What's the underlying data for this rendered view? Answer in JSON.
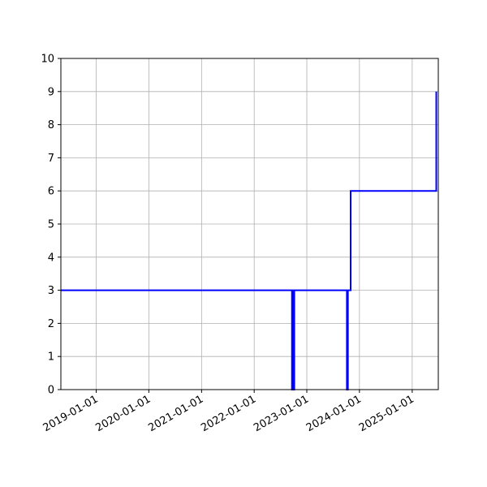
{
  "chart_data": {
    "type": "line",
    "step": true,
    "grid": true,
    "xaxis": "date",
    "xlim": [
      "2018-05-01",
      "2025-07-01"
    ],
    "ylim": [
      0,
      10
    ],
    "x_ticks": [
      "2019-01-01",
      "2020-01-01",
      "2021-01-01",
      "2022-01-01",
      "2023-01-01",
      "2024-01-01",
      "2025-01-01"
    ],
    "y_ticks": [
      0,
      1,
      2,
      3,
      4,
      5,
      6,
      7,
      8,
      9,
      10
    ],
    "series": [
      {
        "color": "#0000ff",
        "points": [
          {
            "x": "2018-05-01",
            "y": 3
          },
          {
            "x": "2022-09-20",
            "y": 3
          },
          {
            "x": "2022-09-20",
            "y": 0
          },
          {
            "x": "2022-09-27",
            "y": 0
          },
          {
            "x": "2022-09-27",
            "y": 3
          },
          {
            "x": "2022-09-29",
            "y": 3
          },
          {
            "x": "2022-09-29",
            "y": 0
          },
          {
            "x": "2022-10-06",
            "y": 0
          },
          {
            "x": "2022-10-06",
            "y": 3
          },
          {
            "x": "2023-10-06",
            "y": 3
          },
          {
            "x": "2023-10-06",
            "y": 0
          },
          {
            "x": "2023-10-13",
            "y": 0
          },
          {
            "x": "2023-10-13",
            "y": 3
          },
          {
            "x": "2023-11-01",
            "y": 3
          },
          {
            "x": "2023-11-01",
            "y": 6
          },
          {
            "x": "2025-06-17",
            "y": 6
          },
          {
            "x": "2025-06-17",
            "y": 9
          }
        ]
      }
    ]
  }
}
